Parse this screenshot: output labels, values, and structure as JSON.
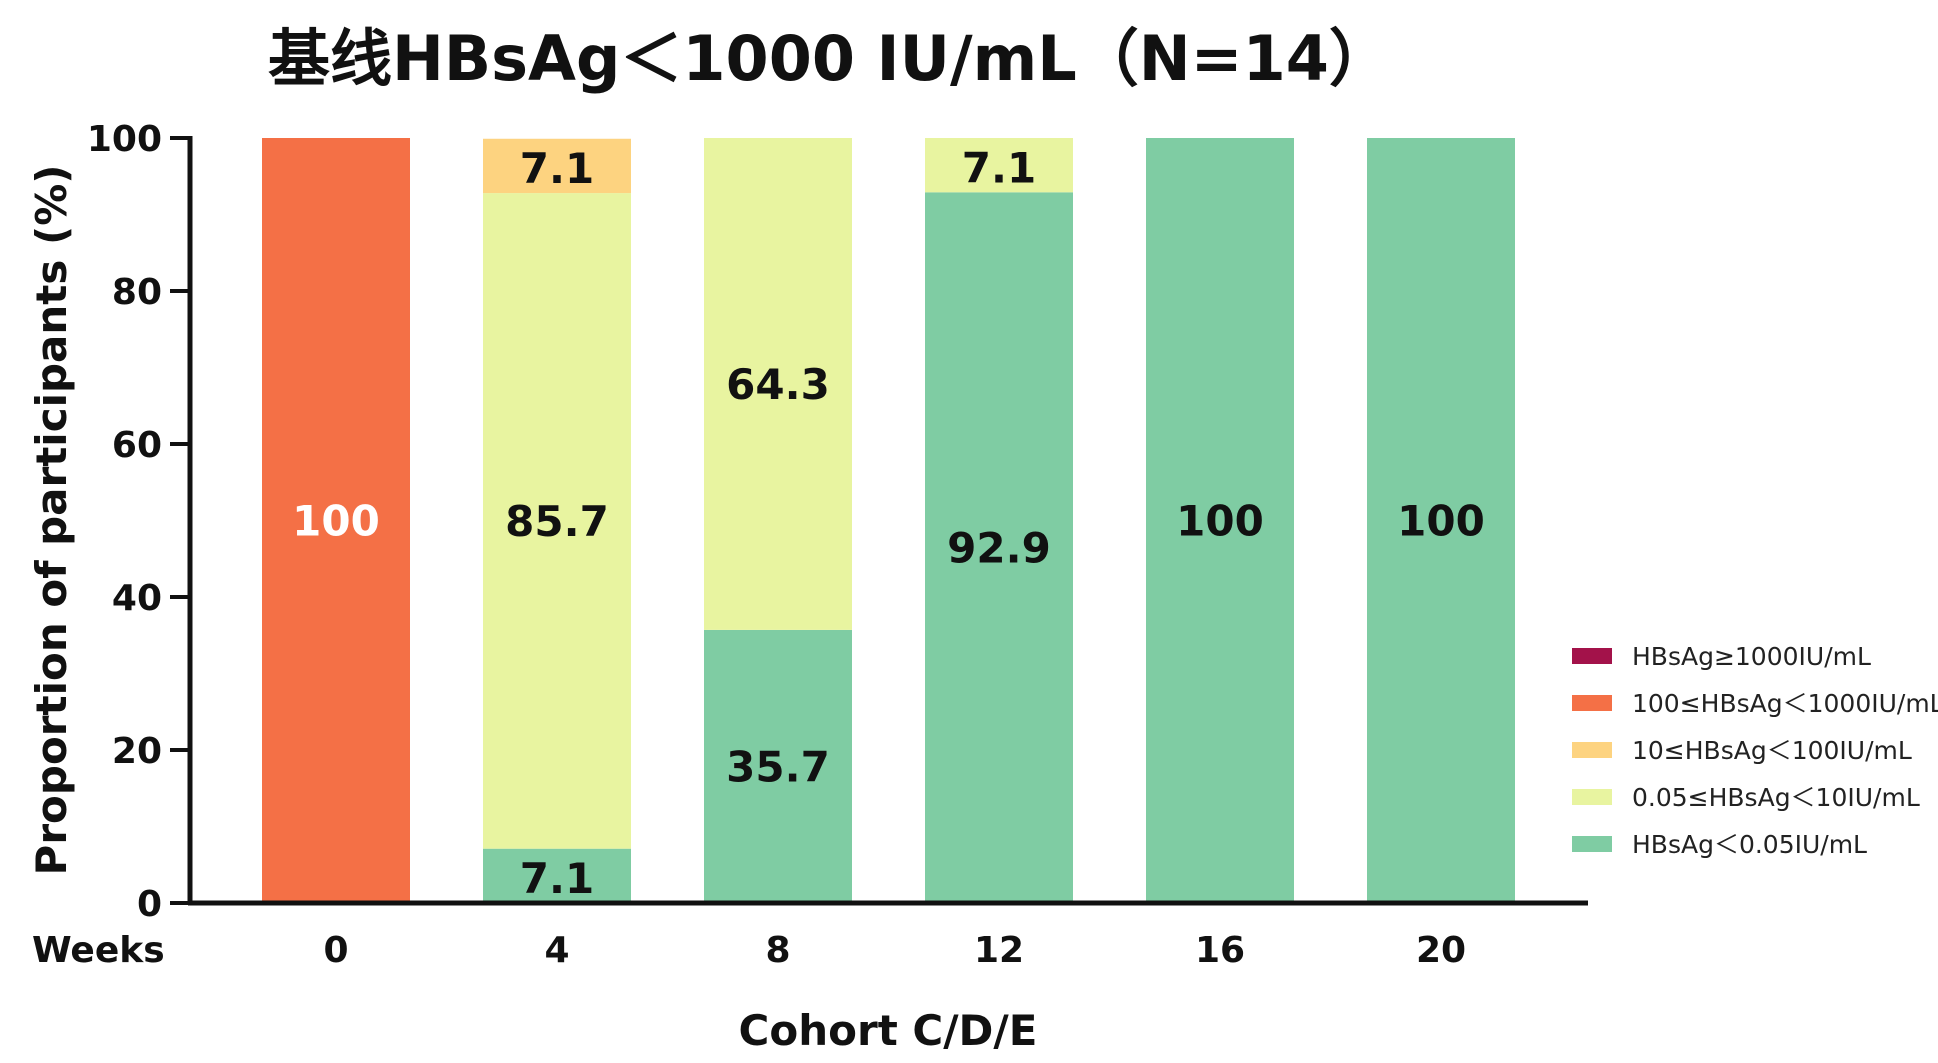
{
  "chart_data": {
    "type": "bar",
    "stacked": true,
    "title": "基线HBsAg＜1000 IU/mL（N=14）",
    "xlabel": "Cohort C/D/E",
    "x_prefix_label": "Weeks",
    "ylabel": "Proportion of participants (%)",
    "ylim": [
      0,
      100
    ],
    "yticks": [
      "0",
      "20",
      "40",
      "60",
      "80",
      "100"
    ],
    "categories": [
      "0",
      "4",
      "8",
      "12",
      "16",
      "20"
    ],
    "legend_position": "right",
    "series": [
      {
        "name": "HBsAg＜0.05IU/mL",
        "color": "#7fcca3",
        "values": [
          0,
          7.1,
          35.7,
          92.9,
          100,
          100
        ],
        "labels": [
          "",
          "7.1",
          "35.7",
          "92.9",
          "100",
          "100"
        ]
      },
      {
        "name": "0.05≤HBsAg＜10IU/mL",
        "color": "#e8f4a0",
        "values": [
          0,
          85.7,
          64.3,
          7.1,
          0,
          0
        ],
        "labels": [
          "",
          "85.7",
          "64.3",
          "7.1",
          "",
          ""
        ]
      },
      {
        "name": "10≤HBsAg＜100IU/mL",
        "color": "#fdd380",
        "values": [
          0,
          7.1,
          0,
          0,
          0,
          0
        ],
        "labels": [
          "",
          "7.1",
          "",
          "",
          "",
          ""
        ]
      },
      {
        "name": "100≤HBsAg＜1000IU/mL",
        "color": "#f47046",
        "values": [
          100,
          0,
          0,
          0,
          0,
          0
        ],
        "labels": [
          "100",
          "",
          "",
          "",
          "",
          ""
        ]
      },
      {
        "name": "HBsAg≥1000IU/mL",
        "color": "#a3124a",
        "values": [
          0,
          0,
          0,
          0,
          0,
          0
        ],
        "labels": [
          "",
          "",
          "",
          "",
          "",
          ""
        ]
      }
    ],
    "legend_order": [
      "HBsAg≥1000IU/mL",
      "100≤HBsAg＜1000IU/mL",
      "10≤HBsAg＜100IU/mL",
      "0.05≤HBsAg＜10IU/mL",
      "HBsAg＜0.05IU/mL"
    ]
  }
}
